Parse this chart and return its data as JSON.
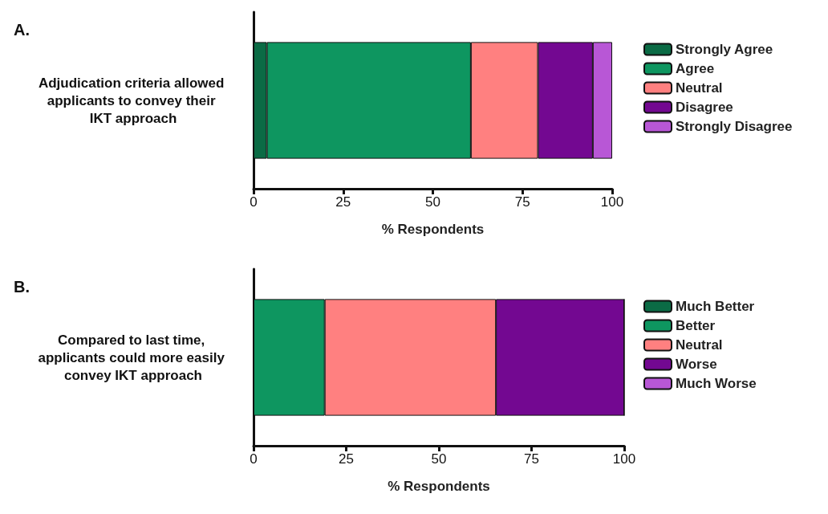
{
  "chart_data": [
    {
      "type": "bar",
      "orientation": "horizontal",
      "stacked": true,
      "title": "A.",
      "xlabel": "% Respondents",
      "categories": [
        "Adjudication criteria allowed applicants to convey their IKT approach"
      ],
      "xlim": [
        0,
        100
      ],
      "xticks": [
        0,
        25,
        50,
        75,
        100
      ],
      "grid": false,
      "legend": "right",
      "series": [
        {
          "name": "Strongly Agree",
          "color": "#0b6b45",
          "values": [
            3.7
          ]
        },
        {
          "name": "Agree",
          "color": "#0e9660",
          "values": [
            56.9
          ]
        },
        {
          "name": "Neutral",
          "color": "#ff8080",
          "values": [
            18.7
          ]
        },
        {
          "name": "Disagree",
          "color": "#730891",
          "values": [
            15.3
          ]
        },
        {
          "name": "Strongly Disagree",
          "color": "#b857d6",
          "values": [
            5.4
          ]
        }
      ]
    },
    {
      "type": "bar",
      "orientation": "horizontal",
      "stacked": true,
      "title": "B.",
      "xlabel": "% Respondents",
      "categories": [
        "Compared to last time, applicants could more easily convey IKT approach"
      ],
      "xlim": [
        0,
        100
      ],
      "xticks": [
        0,
        25,
        50,
        75,
        100
      ],
      "grid": false,
      "legend": "right",
      "series": [
        {
          "name": "Much Better",
          "color": "#0b6b45",
          "values": [
            0
          ]
        },
        {
          "name": "Better",
          "color": "#0e9660",
          "values": [
            19.2
          ]
        },
        {
          "name": "Neutral",
          "color": "#ff8080",
          "values": [
            46.2
          ]
        },
        {
          "name": "Worse",
          "color": "#730891",
          "values": [
            34.6
          ]
        },
        {
          "name": "Much Worse",
          "color": "#b857d6",
          "values": [
            0
          ]
        }
      ]
    }
  ]
}
